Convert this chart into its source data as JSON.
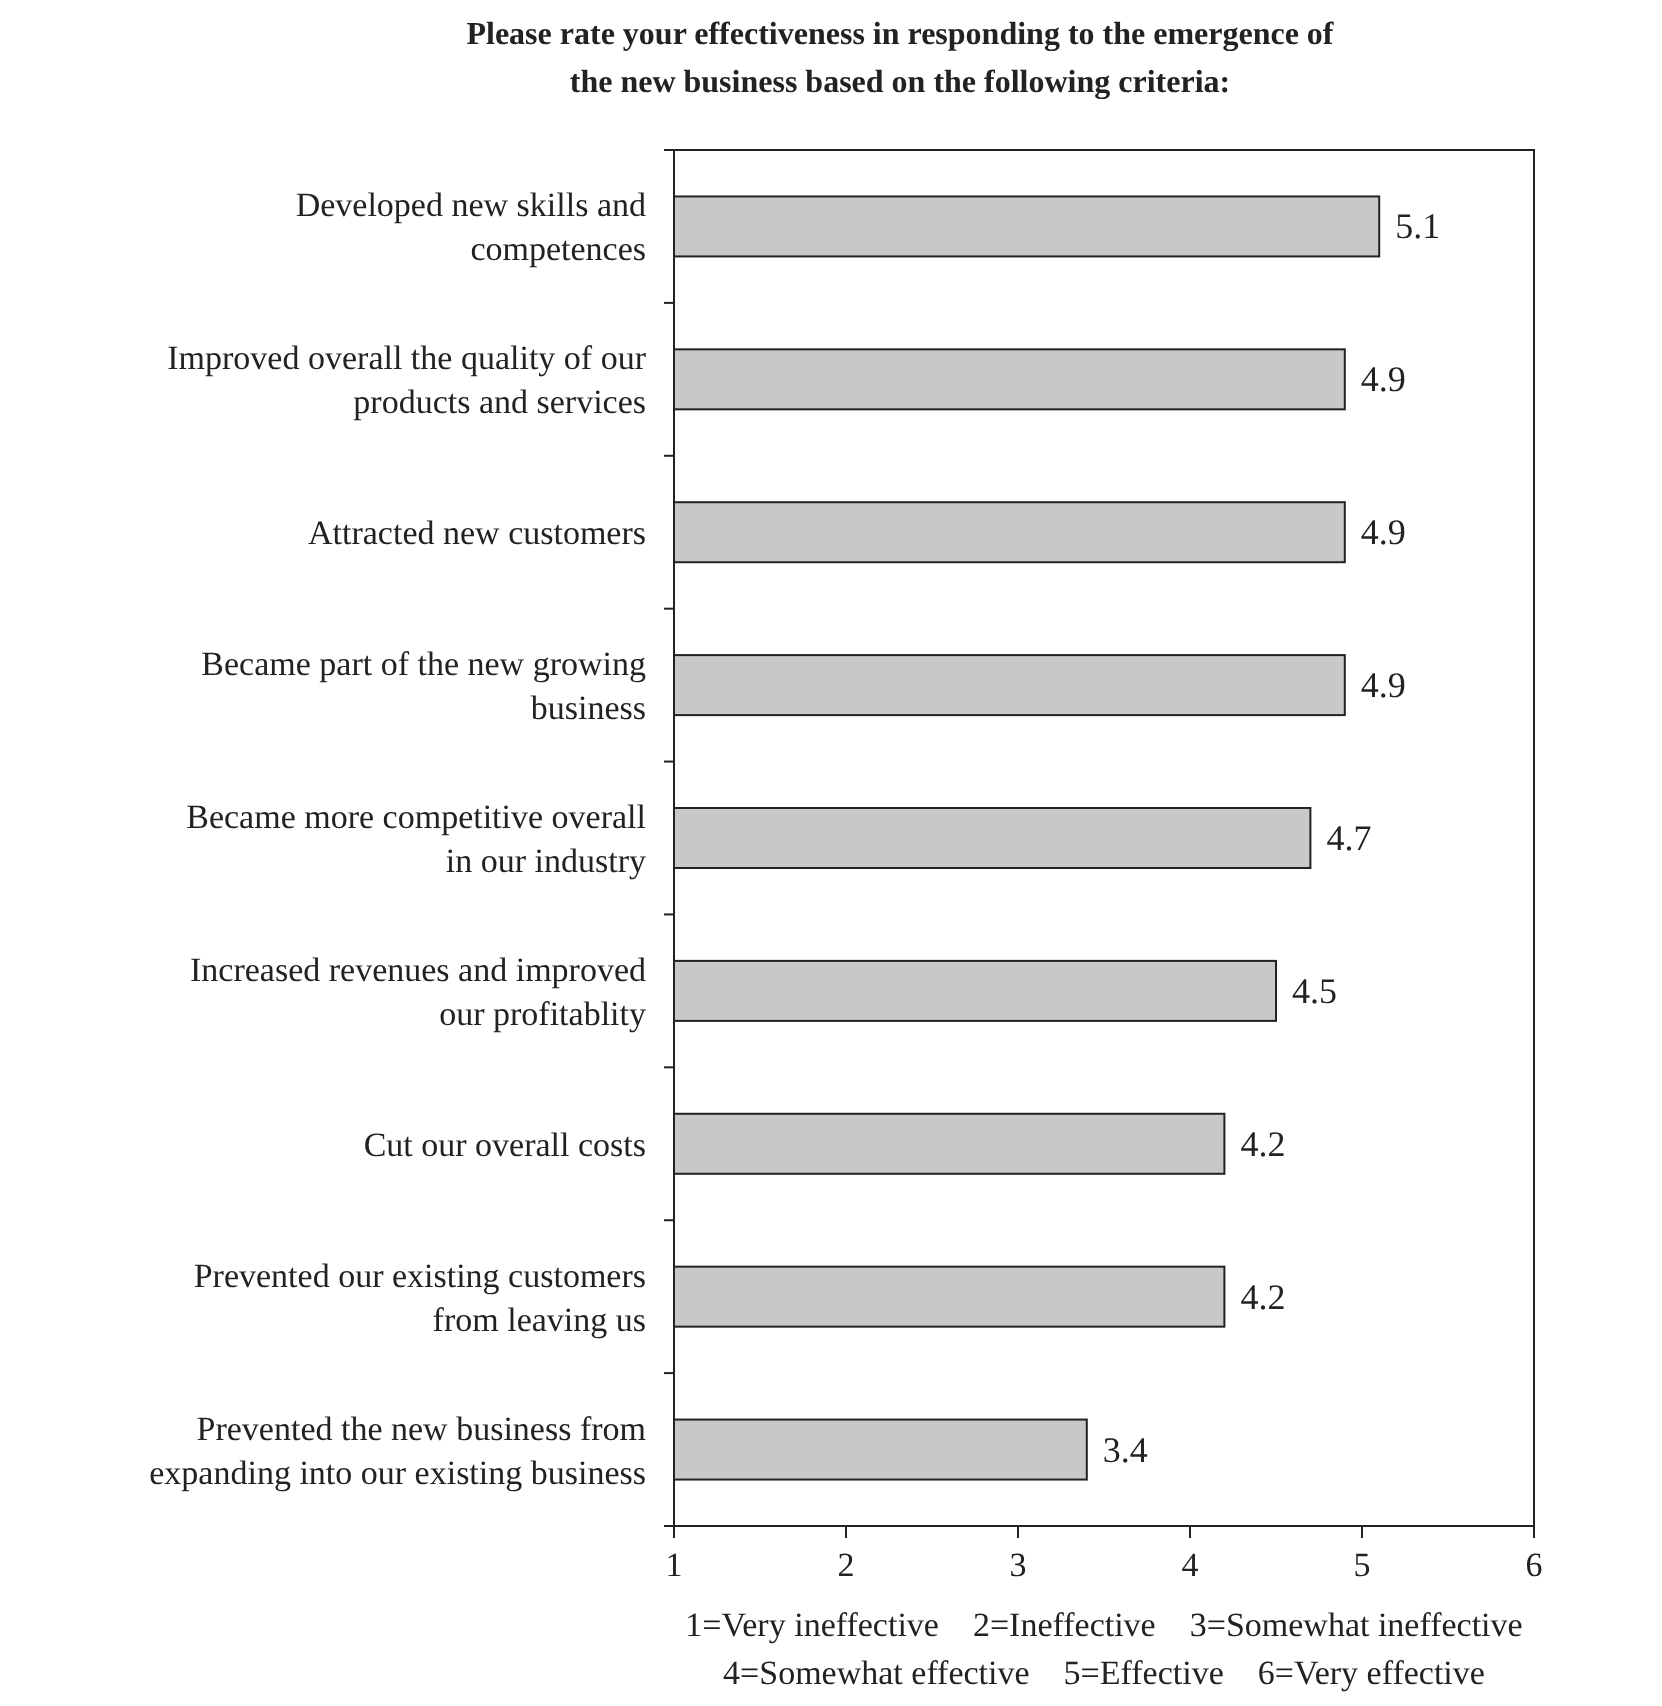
{
  "chart_data": {
    "type": "bar",
    "orientation": "horizontal",
    "title": "Please rate your effectiveness in responding to the emergence of\nthe new business based on the following criteria:",
    "categories": [
      "Developed new skills and\ncompetences",
      "Improved overall the quality of our\nproducts and services",
      "Attracted new customers",
      "Became part of the new growing\nbusiness",
      "Became more competitive overall\nin our industry",
      "Increased revenues and improved\nour profitablity",
      "Cut our overall costs",
      "Prevented our existing customers\nfrom leaving us",
      "Prevented the new business from\nexpanding into our existing business"
    ],
    "values": [
      5.1,
      4.9,
      4.9,
      4.9,
      4.7,
      4.5,
      4.2,
      4.2,
      3.4
    ],
    "color": "#c8c8c8",
    "xlim": [
      1,
      6
    ],
    "xticks": [
      1,
      2,
      3,
      4,
      5,
      6
    ],
    "data_labels": true,
    "grid": false,
    "annotations": [
      "1=Very ineffective    2=Ineffective    3=Somewhat ineffective",
      "4=Somewhat effective    5=Effective    6=Very effective"
    ]
  }
}
